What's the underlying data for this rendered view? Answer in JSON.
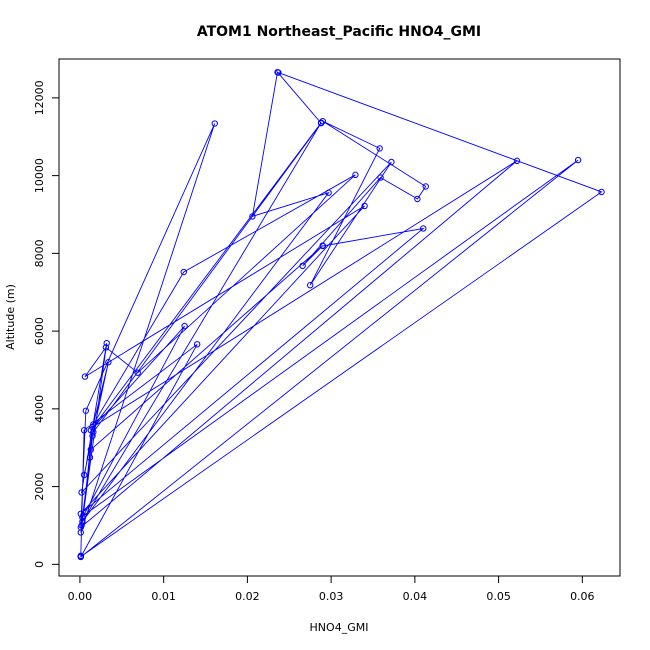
{
  "chart_data": {
    "type": "line",
    "title": "ATOM1 Northeast_Pacific HNO4_GMI",
    "xlabel": "HNO4_GMI",
    "ylabel": "Altitude (m)",
    "xlim": [
      -0.0025,
      0.0645
    ],
    "ylim": [
      -300,
      13000
    ],
    "xticks": [
      0.0,
      0.01,
      0.02,
      0.03,
      0.04,
      0.05,
      0.06
    ],
    "xtick_labels": [
      "0.00",
      "0.01",
      "0.02",
      "0.03",
      "0.04",
      "0.05",
      "0.06"
    ],
    "yticks": [
      0,
      2000,
      4000,
      6000,
      8000,
      10000,
      12000
    ],
    "ytick_labels": [
      "0",
      "2000",
      "4000",
      "6000",
      "8000",
      "10000",
      "12000"
    ],
    "grid": false,
    "legend": "none",
    "color": "#0000ff",
    "series": [
      {
        "x": [
          0.0237,
          0.0623,
          0.0001,
          0.0001,
          0.0005,
          0.014,
          0.0001,
          0.0595,
          0.0004,
          0.0015,
          0.0522,
          0.0001,
          0.0007,
          0.0161,
          0.0001,
          0.0032,
          0.0002,
          0.0372,
          0.0275,
          0.0358,
          0.029,
          0.0413,
          0.0403,
          0.0359,
          0.0266,
          0.029,
          0.0013,
          0.0002,
          0.0012,
          0.0015,
          0.0003,
          0.0125,
          0.0013,
          0.0288,
          0.0003,
          0.0297,
          0.0206,
          0.0236,
          0.0288,
          0.0016,
          0.0005,
          0.0034,
          0.0016,
          0.0124,
          0.0329,
          0.0069,
          0.0031,
          0.0006,
          0.034,
          0.0001,
          0.041,
          0.029
        ],
        "y": [
          12650,
          9580,
          200,
          220,
          3450,
          5660,
          190,
          10400,
          1250,
          3530,
          10380,
          950,
          3950,
          11340,
          820,
          5690,
          1850,
          10350,
          7180,
          10700,
          11400,
          9720,
          9400,
          9950,
          7680,
          8200,
          2950,
          1000,
          2750,
          3300,
          1200,
          6130,
          3450,
          11360,
          1100,
          9560,
          8950,
          12660,
          11350,
          3400,
          2300,
          5200,
          3600,
          7520,
          10020,
          4930,
          5580,
          4830,
          9220,
          1300,
          8640,
          8190
        ]
      }
    ]
  }
}
